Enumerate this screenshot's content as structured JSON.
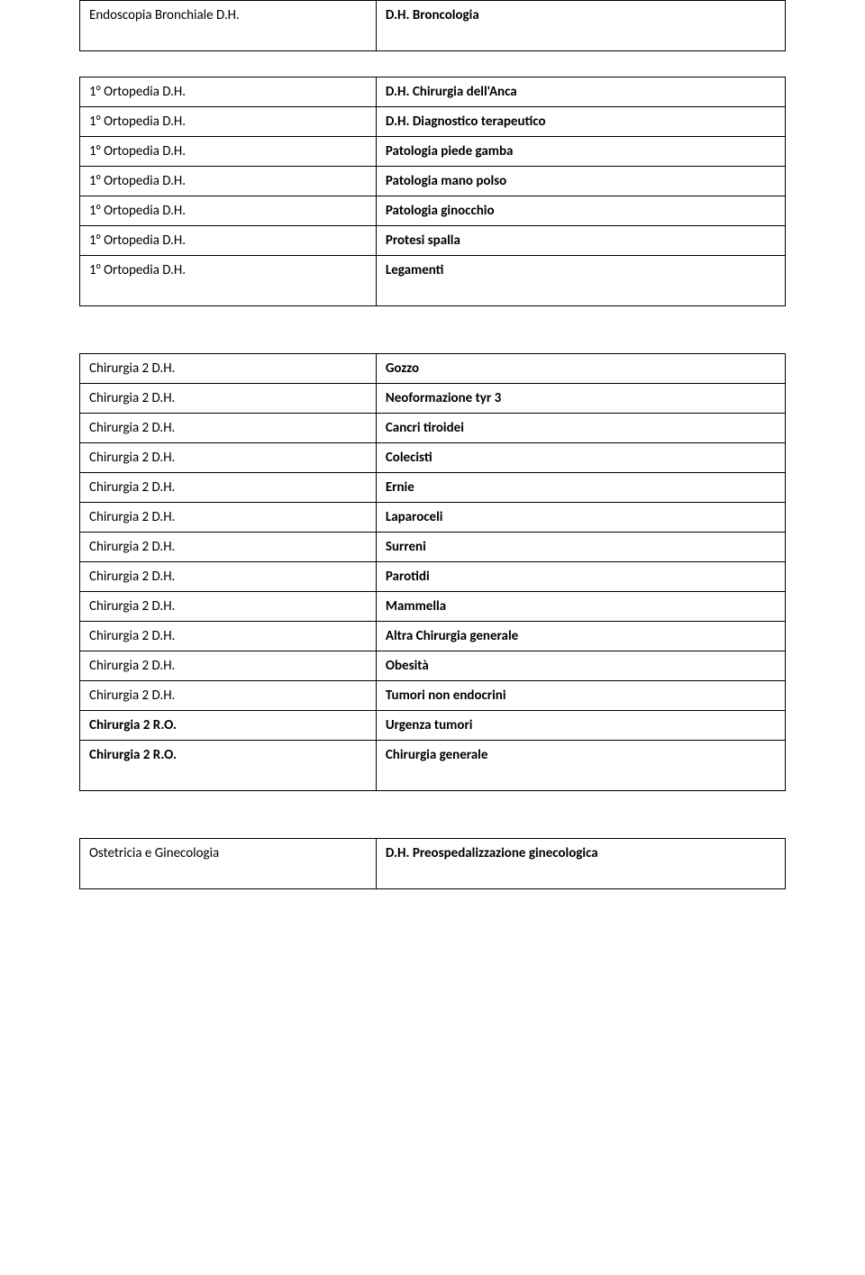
{
  "table1": {
    "rows": [
      {
        "left": "Endoscopia Bronchiale D.H.",
        "right": "D.H.  Broncologia"
      }
    ]
  },
  "table2": {
    "rows": [
      {
        "left": "1° Ortopedia   D.H.",
        "right": "D.H. Chirurgia dell'Anca"
      },
      {
        "left": "1° Ortopedia D.H.",
        "right": "D.H. Diagnostico  terapeutico"
      },
      {
        "left": "1° Ortopedia D.H.",
        "right": "Patologia piede  gamba"
      },
      {
        "left": "1° Ortopedia D.H.",
        "right": "Patologia  mano polso"
      },
      {
        "left": "1°  Ortopedia D.H.",
        "right": "Patologia  ginocchio"
      },
      {
        "left": "1° Ortopedia D.H.",
        "right": "Protesi  spalla"
      },
      {
        "left": "1°  Ortopedia D.H.",
        "right": "Legamenti"
      }
    ]
  },
  "table3": {
    "rows": [
      {
        "left": "Chirurgia  2  D.H.",
        "right": "Gozzo"
      },
      {
        "left": "Chirurgia  2  D.H.",
        "right": "Neoformazione tyr  3"
      },
      {
        "left": "Chirurgia  2  D.H.",
        "right": "Cancri tiroidei"
      },
      {
        "left": "Chirurgia  2  D.H.",
        "right": "Colecisti"
      },
      {
        "left": "Chirurgia  2  D.H.",
        "right": "Ernie"
      },
      {
        "left": "Chirurgia  2  D.H.",
        "right": "Laparoceli"
      },
      {
        "left": "Chirurgia  2  D.H.",
        "right": "Surreni"
      },
      {
        "left": "Chirurgia  2  D.H.",
        "right": "Parotidi"
      },
      {
        "left": "Chirurgia  2  D.H.",
        "right": "Mammella"
      },
      {
        "left": "Chirurgia  2  D.H.",
        "right": "Altra Chirurgia generale"
      },
      {
        "left": "Chirurgia  2  D.H.",
        "right": "Obesità"
      },
      {
        "left": "Chirurgia  2  D.H.",
        "right": "Tumori non endocrini"
      },
      {
        "left": "Chirurgia  2  R.O.",
        "right": "Urgenza  tumori"
      },
      {
        "left": "Chirurgia  2  R.O.",
        "right": "Chirurgia generale"
      }
    ]
  },
  "table4": {
    "rows": [
      {
        "left": "Ostetricia e Ginecologia",
        "right": "D.H. Preospedalizzazione  ginecologica"
      }
    ]
  }
}
